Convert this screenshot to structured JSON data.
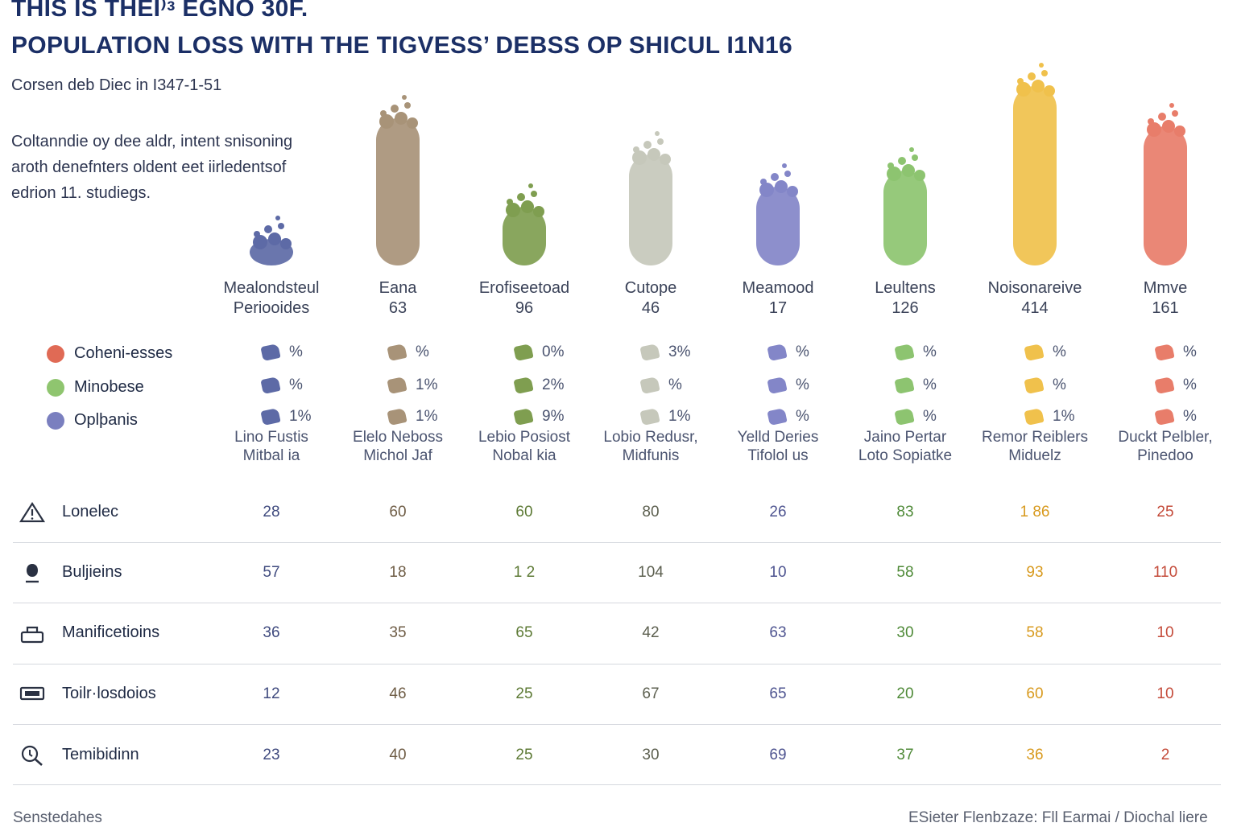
{
  "title": {
    "line1": "THIS IS THEI⁾ᵌ EGNO 30F.",
    "line2": "POPULATION LOSS WITH THE TIGVESS’ DEBSS OP SHICUL I1N16"
  },
  "subtitle": "Corsen deb Diec in I347-1-51",
  "intro": [
    "Coltanndie oy dee aldr, intent snisoning",
    "aroth denefnters oldent eet iirledentsof",
    "edrion 11. studiegs."
  ],
  "legend": [
    {
      "label": "Coheni-esses",
      "color": "#e06a55"
    },
    {
      "label": "Minobese",
      "color": "#8fc56f"
    },
    {
      "label": "Oplþanis",
      "color": "#7a7fbf"
    }
  ],
  "chart_data": {
    "type": "bar",
    "categories": [
      {
        "name": "Mealondsteul",
        "value_text": "Periooides"
      },
      {
        "name": "Eana",
        "value_text": "63"
      },
      {
        "name": "Erofiseetoad",
        "value_text": "96"
      },
      {
        "name": "Cutope",
        "value_text": "46"
      },
      {
        "name": "Meamood",
        "value_text": "17"
      },
      {
        "name": "Leultens",
        "value_text": "126"
      },
      {
        "name": "Noisonareive",
        "value_text": "414"
      },
      {
        "name": "Mmve",
        "value_text": "161"
      }
    ],
    "values": [
      45,
      195,
      85,
      150,
      110,
      130,
      235,
      185
    ],
    "colors": [
      "#5d6aa6",
      "#a89378",
      "#7f9e50",
      "#c6c8bb",
      "#8386c8",
      "#8dc470",
      "#f0c14c",
      "#e87d6a"
    ],
    "text_colors": [
      "#3f4a7e",
      "#6e5c45",
      "#5d7a35",
      "#5d6050",
      "#4e5490",
      "#4f8a38",
      "#d89a1e",
      "#c44b3a"
    ]
  },
  "mini_rows": [
    [
      "%",
      "%",
      "1%"
    ],
    [
      "%",
      "1%",
      "1%"
    ],
    [
      "0%",
      "2%",
      "9%"
    ],
    [
      "3%",
      "%",
      "1%"
    ],
    [
      "%",
      "%",
      "%"
    ],
    [
      "%",
      "%",
      "%"
    ],
    [
      "%",
      "%",
      "1%"
    ],
    [
      "%",
      "%",
      "%"
    ]
  ],
  "authors": [
    [
      "Lino Fustis",
      "Mitbal ia"
    ],
    [
      "Elelo Neboss",
      "Michol Jaf"
    ],
    [
      "Lebio Posiost",
      "Nobal kia"
    ],
    [
      "Lobio Redusr,",
      "Midfunis"
    ],
    [
      "Yelld Deries",
      "Tifolol us"
    ],
    [
      "Jaino Pertar",
      "Loto Sopiatke"
    ],
    [
      "Remor Reiblers",
      "Miduelz"
    ],
    [
      "Duckt Pelbler,",
      "Pinedoo"
    ]
  ],
  "table": {
    "rows": [
      {
        "label": "Lonelec",
        "icon": "warning-triangle-icon",
        "values": [
          "28",
          "60",
          "60",
          "80",
          "26",
          "83",
          "1 86",
          "25"
        ]
      },
      {
        "label": "Buljieins",
        "icon": "person-icon",
        "values": [
          "57",
          "18",
          "1 2",
          "104",
          "10",
          "58",
          "93",
          "110"
        ]
      },
      {
        "label": "Manificetioins",
        "icon": "basket-icon",
        "values": [
          "36",
          "35",
          "65",
          "42",
          "63",
          "30",
          "58",
          "10"
        ]
      },
      {
        "label": "Toilr·losdoios",
        "icon": "ticket-icon",
        "values": [
          "12",
          "46",
          "25",
          "67",
          "65",
          "20",
          "60",
          "10"
        ]
      },
      {
        "label": "Temibidinn",
        "icon": "magnifier-icon",
        "values": [
          "23",
          "40",
          "25",
          "30",
          "69",
          "37",
          "36",
          "2"
        ]
      }
    ]
  },
  "footer": {
    "left": "Senstedahes",
    "right": "ESieter Flenbzaze: Fll Earmai / Diochal liere"
  }
}
